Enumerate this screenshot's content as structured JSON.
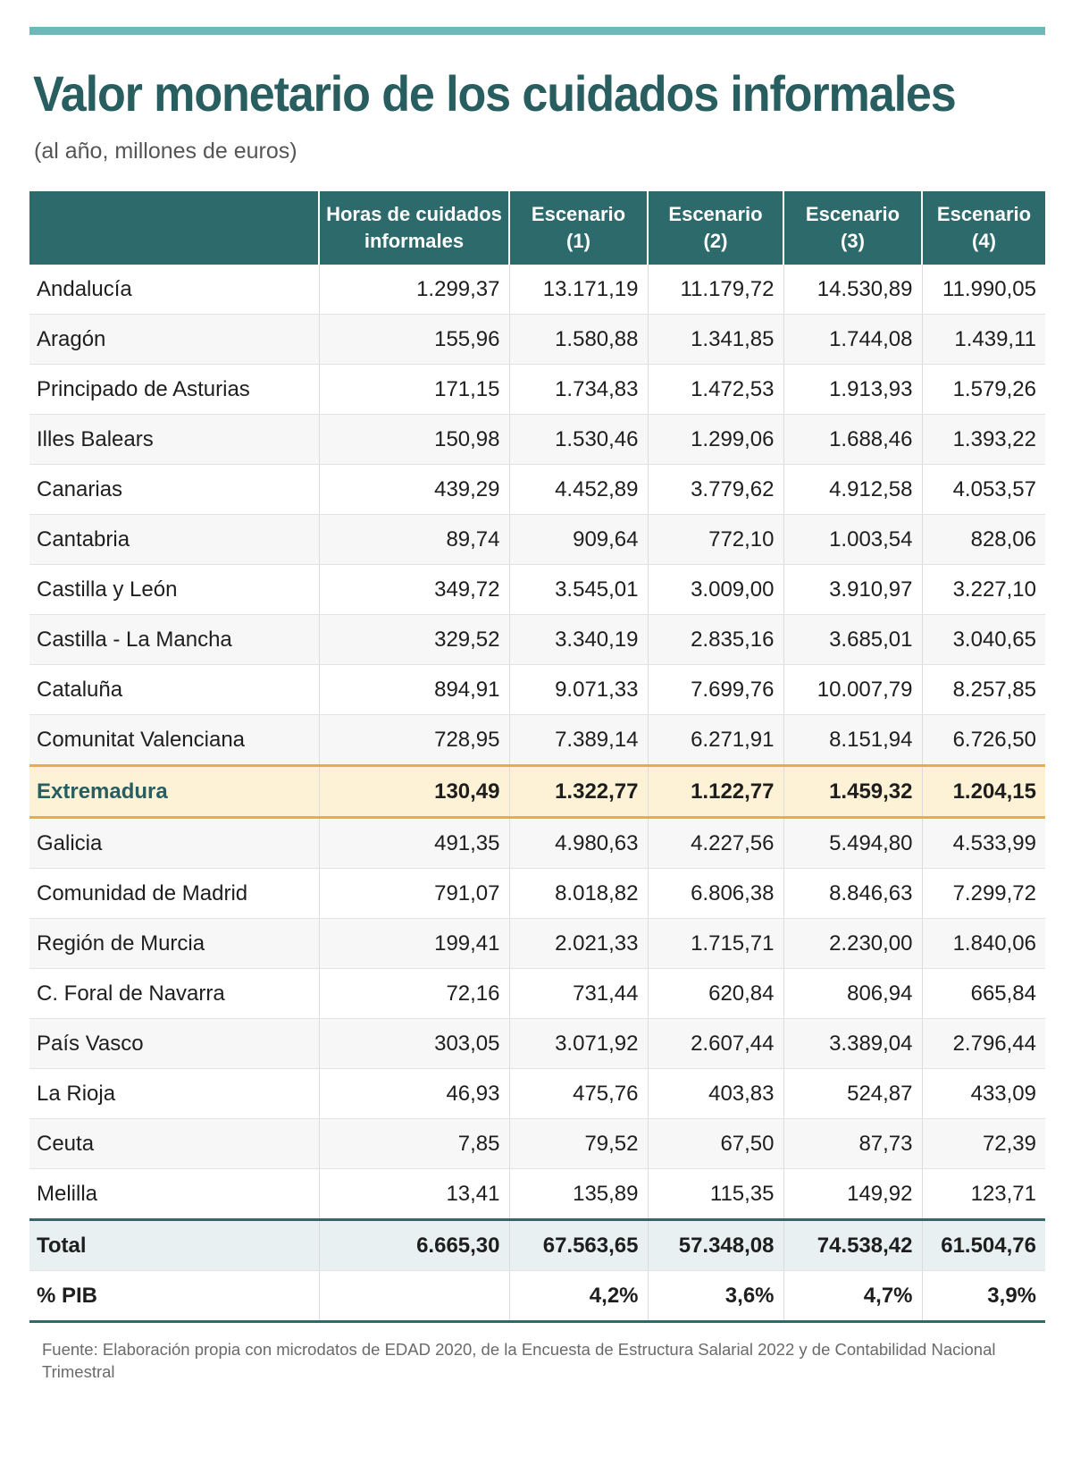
{
  "title": "Valor monetario de los cuidados informales",
  "subtitle": "(al año, millones de euros)",
  "table": {
    "headers": [
      {
        "line1": "",
        "line2": ""
      },
      {
        "line1": "Horas de cuidados",
        "line2": "informales"
      },
      {
        "line1": "Escenario",
        "line2": "(1)"
      },
      {
        "line1": "Escenario",
        "line2": "(2)"
      },
      {
        "line1": "Escenario",
        "line2": "(3)"
      },
      {
        "line1": "Escenario",
        "line2": "(4)"
      }
    ],
    "rows": [
      [
        "Andalucía",
        "1.299,37",
        "13.171,19",
        "11.179,72",
        "14.530,89",
        "11.990,05"
      ],
      [
        "Aragón",
        "155,96",
        "1.580,88",
        "1.341,85",
        "1.744,08",
        "1.439,11"
      ],
      [
        "Principado de Asturias",
        "171,15",
        "1.734,83",
        "1.472,53",
        "1.913,93",
        "1.579,26"
      ],
      [
        "Illes Balears",
        "150,98",
        "1.530,46",
        "1.299,06",
        "1.688,46",
        "1.393,22"
      ],
      [
        "Canarias",
        "439,29",
        "4.452,89",
        "3.779,62",
        "4.912,58",
        "4.053,57"
      ],
      [
        "Cantabria",
        "89,74",
        "909,64",
        "772,10",
        "1.003,54",
        "828,06"
      ],
      [
        "Castilla y León",
        "349,72",
        "3.545,01",
        "3.009,00",
        "3.910,97",
        "3.227,10"
      ],
      [
        "Castilla - La Mancha",
        "329,52",
        "3.340,19",
        "2.835,16",
        "3.685,01",
        "3.040,65"
      ],
      [
        "Cataluña",
        "894,91",
        "9.071,33",
        "7.699,76",
        "10.007,79",
        "8.257,85"
      ],
      [
        "Comunitat Valenciana",
        "728,95",
        "7.389,14",
        "6.271,91",
        "8.151,94",
        "6.726,50"
      ],
      [
        "Extremadura",
        "130,49",
        "1.322,77",
        "1.122,77",
        "1.459,32",
        "1.204,15"
      ],
      [
        "Galicia",
        "491,35",
        "4.980,63",
        "4.227,56",
        "5.494,80",
        "4.533,99"
      ],
      [
        "Comunidad de Madrid",
        "791,07",
        "8.018,82",
        "6.806,38",
        "8.846,63",
        "7.299,72"
      ],
      [
        "Región de Murcia",
        "199,41",
        "2.021,33",
        "1.715,71",
        "2.230,00",
        "1.840,06"
      ],
      [
        "C. Foral de Navarra",
        "72,16",
        "731,44",
        "620,84",
        "806,94",
        "665,84"
      ],
      [
        "País Vasco",
        "303,05",
        "3.071,92",
        "2.607,44",
        "3.389,04",
        "2.796,44"
      ],
      [
        "La Rioja",
        "46,93",
        "475,76",
        "403,83",
        "524,87",
        "433,09"
      ],
      [
        "Ceuta",
        "7,85",
        "79,52",
        "67,50",
        "87,73",
        "72,39"
      ],
      [
        "Melilla",
        "13,41",
        "135,89",
        "115,35",
        "149,92",
        "123,71"
      ]
    ],
    "highlight_region": "Extremadura",
    "total": [
      "Total",
      "6.665,30",
      "67.563,65",
      "57.348,08",
      "74.538,42",
      "61.504,76"
    ],
    "pib": [
      "% PIB",
      "",
      "4,2%",
      "3,6%",
      "4,7%",
      "3,9%"
    ]
  },
  "source": "Fuente: Elaboración propia con microdatos de EDAD 2020, de la Encuesta de Estructura Salarial 2022 y de Contabilidad Nacional Trimestral",
  "colors": {
    "accent": "#2d6a6b",
    "top_rule": "#6fb8b9",
    "title": "#285e5f",
    "highlight_fill": "#fdf1d6",
    "highlight_border": "#e9ad43"
  }
}
